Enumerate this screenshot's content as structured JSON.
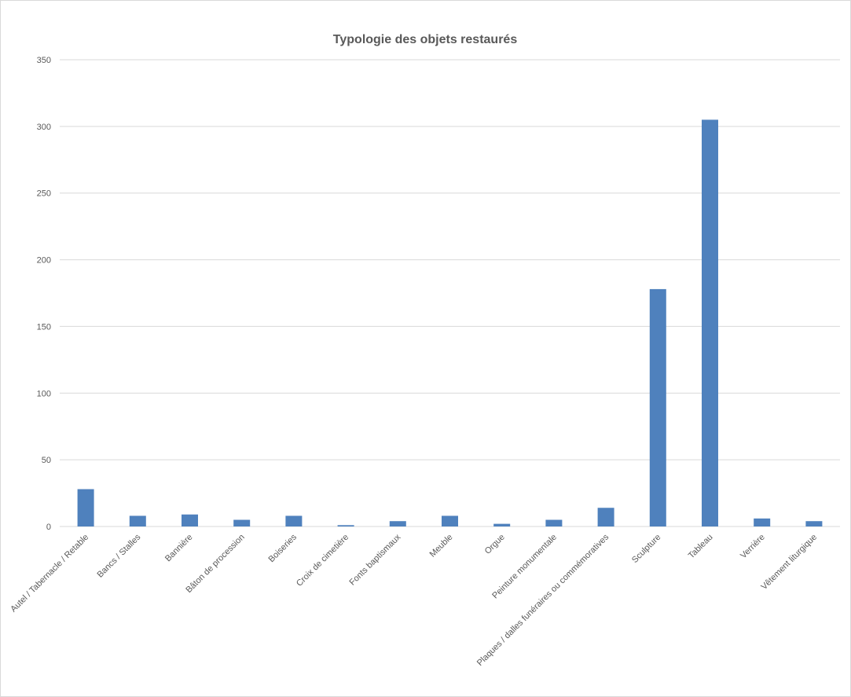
{
  "chart_data": {
    "type": "bar",
    "title": "Typologie des objets restaurés",
    "xlabel": "",
    "ylabel": "",
    "ylim": [
      0,
      350
    ],
    "yticks": [
      0,
      50,
      100,
      150,
      200,
      250,
      300,
      350
    ],
    "grid": true,
    "legend": "none",
    "bar_color": "#4f81bd",
    "categories": [
      "Autel / Tabernacle / Retable",
      "Bancs / Stalles",
      "Bannière",
      "Bâton de procession",
      "Boiseries",
      "Croix de cimetière",
      "Fonts baptismaux",
      "Meuble",
      "Orgue",
      "Peinture monumentale",
      "Plaques / dalles funéraires ou commémoratives",
      "Sculpture",
      "Tableau",
      "Verrière",
      "Vêtement liturgique"
    ],
    "values": [
      28,
      8,
      9,
      5,
      8,
      1,
      4,
      8,
      2,
      5,
      14,
      178,
      305,
      6,
      4
    ]
  }
}
